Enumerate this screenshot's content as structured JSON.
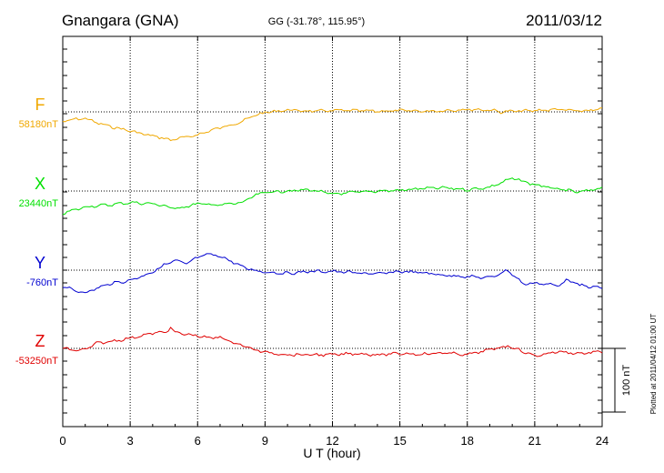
{
  "header": {
    "station": "Gnangara (GNA)",
    "coords": "GG (-31.78°, 115.95°)",
    "date": "2011/03/12"
  },
  "plotted_note": "Plotted at 2011/04/12 01:00 UT",
  "scale_bar": {
    "label": "100 nT",
    "value_nT": 100
  },
  "chart_data": {
    "type": "line",
    "title": "Gnangara (GNA)",
    "xlabel": "U T (hour)",
    "xlim": [
      0,
      24
    ],
    "xticks": [
      "0",
      "3",
      "6",
      "9",
      "12",
      "15",
      "18",
      "21",
      "24"
    ],
    "grid": true,
    "series": [
      {
        "name": "F",
        "baseline_label": "58180nT",
        "color": "#f0a800",
        "offset_nT": [
          [
            0,
            -15
          ],
          [
            0.5,
            -12
          ],
          [
            1,
            -10
          ],
          [
            1.5,
            -17
          ],
          [
            2,
            -22
          ],
          [
            2.5,
            -26
          ],
          [
            3,
            -30
          ],
          [
            3.5,
            -34
          ],
          [
            4,
            -38
          ],
          [
            4.5,
            -41
          ],
          [
            4.8,
            -45
          ],
          [
            5,
            -42
          ],
          [
            5.5,
            -40
          ],
          [
            6,
            -36
          ],
          [
            6.5,
            -30
          ],
          [
            7,
            -25
          ],
          [
            7.5,
            -20
          ],
          [
            8,
            -15
          ],
          [
            8.5,
            -6
          ],
          [
            9,
            -1
          ],
          [
            10,
            3
          ],
          [
            11,
            1
          ],
          [
            12,
            2
          ],
          [
            13,
            2
          ],
          [
            14,
            1
          ],
          [
            15,
            2
          ],
          [
            16,
            1
          ],
          [
            17,
            2
          ],
          [
            18,
            4
          ],
          [
            19,
            3
          ],
          [
            19.5,
            0
          ],
          [
            20,
            1
          ],
          [
            21,
            2
          ],
          [
            22,
            4
          ],
          [
            23,
            1
          ],
          [
            24,
            4
          ]
        ]
      },
      {
        "name": "X",
        "baseline_label": "23440nT",
        "color": "#00e000",
        "offset_nT": [
          [
            0,
            -35
          ],
          [
            0.5,
            -30
          ],
          [
            1,
            -25
          ],
          [
            1.5,
            -23
          ],
          [
            2,
            -22
          ],
          [
            3,
            -18
          ],
          [
            4,
            -20
          ],
          [
            4.5,
            -23
          ],
          [
            5,
            -28
          ],
          [
            5.5,
            -24
          ],
          [
            6,
            -20
          ],
          [
            7,
            -22
          ],
          [
            8,
            -18
          ],
          [
            8.5,
            -8
          ],
          [
            9,
            -2
          ],
          [
            10,
            0
          ],
          [
            11,
            2
          ],
          [
            12,
            -5
          ],
          [
            13,
            -2
          ],
          [
            14,
            0
          ],
          [
            15,
            1
          ],
          [
            16,
            4
          ],
          [
            17,
            5
          ],
          [
            18,
            2
          ],
          [
            19,
            6
          ],
          [
            20,
            20
          ],
          [
            21,
            10
          ],
          [
            22,
            3
          ],
          [
            23,
            -2
          ],
          [
            24,
            5
          ]
        ]
      },
      {
        "name": "Y",
        "baseline_label": "-760nT",
        "color": "#0000d0",
        "offset_nT": [
          [
            0,
            -25
          ],
          [
            0.5,
            -32
          ],
          [
            1,
            -35
          ],
          [
            1.5,
            -29
          ],
          [
            2,
            -22
          ],
          [
            3,
            -16
          ],
          [
            4,
            -3
          ],
          [
            4.5,
            8
          ],
          [
            5,
            15
          ],
          [
            5.5,
            10
          ],
          [
            6,
            20
          ],
          [
            6.5,
            25
          ],
          [
            7,
            22
          ],
          [
            7.5,
            14
          ],
          [
            8,
            5
          ],
          [
            8.5,
            0
          ],
          [
            9,
            -3
          ],
          [
            10,
            -5
          ],
          [
            11,
            -2
          ],
          [
            12,
            -2
          ],
          [
            13,
            -4
          ],
          [
            14,
            -6
          ],
          [
            15,
            -2
          ],
          [
            16,
            -4
          ],
          [
            17,
            -8
          ],
          [
            18,
            -10
          ],
          [
            19,
            -12
          ],
          [
            19.8,
            0
          ],
          [
            20.5,
            -22
          ],
          [
            21,
            -20
          ],
          [
            22,
            -24
          ],
          [
            22.5,
            -15
          ],
          [
            23,
            -24
          ],
          [
            24,
            -28
          ]
        ]
      },
      {
        "name": "Z",
        "baseline_label": "-53250nT",
        "color": "#e00000",
        "offset_nT": [
          [
            0,
            0
          ],
          [
            0.5,
            -3
          ],
          [
            1,
            -2
          ],
          [
            1.5,
            8
          ],
          [
            2,
            10
          ],
          [
            3,
            16
          ],
          [
            4,
            24
          ],
          [
            4.5,
            25
          ],
          [
            4.8,
            32
          ],
          [
            5,
            25
          ],
          [
            5.5,
            22
          ],
          [
            6,
            20
          ],
          [
            6.5,
            16
          ],
          [
            7,
            18
          ],
          [
            7.5,
            10
          ],
          [
            8,
            5
          ],
          [
            8.5,
            -2
          ],
          [
            9,
            -6
          ],
          [
            10,
            -10
          ],
          [
            11,
            -10
          ],
          [
            12,
            -10
          ],
          [
            13,
            -8
          ],
          [
            14,
            -10
          ],
          [
            15,
            -8
          ],
          [
            16,
            -9
          ],
          [
            17,
            -7
          ],
          [
            18,
            -10
          ],
          [
            19,
            -2
          ],
          [
            19.8,
            4
          ],
          [
            20.5,
            -5
          ],
          [
            21,
            -12
          ],
          [
            22,
            -5
          ],
          [
            23,
            -8
          ],
          [
            24,
            -5
          ]
        ]
      }
    ]
  }
}
